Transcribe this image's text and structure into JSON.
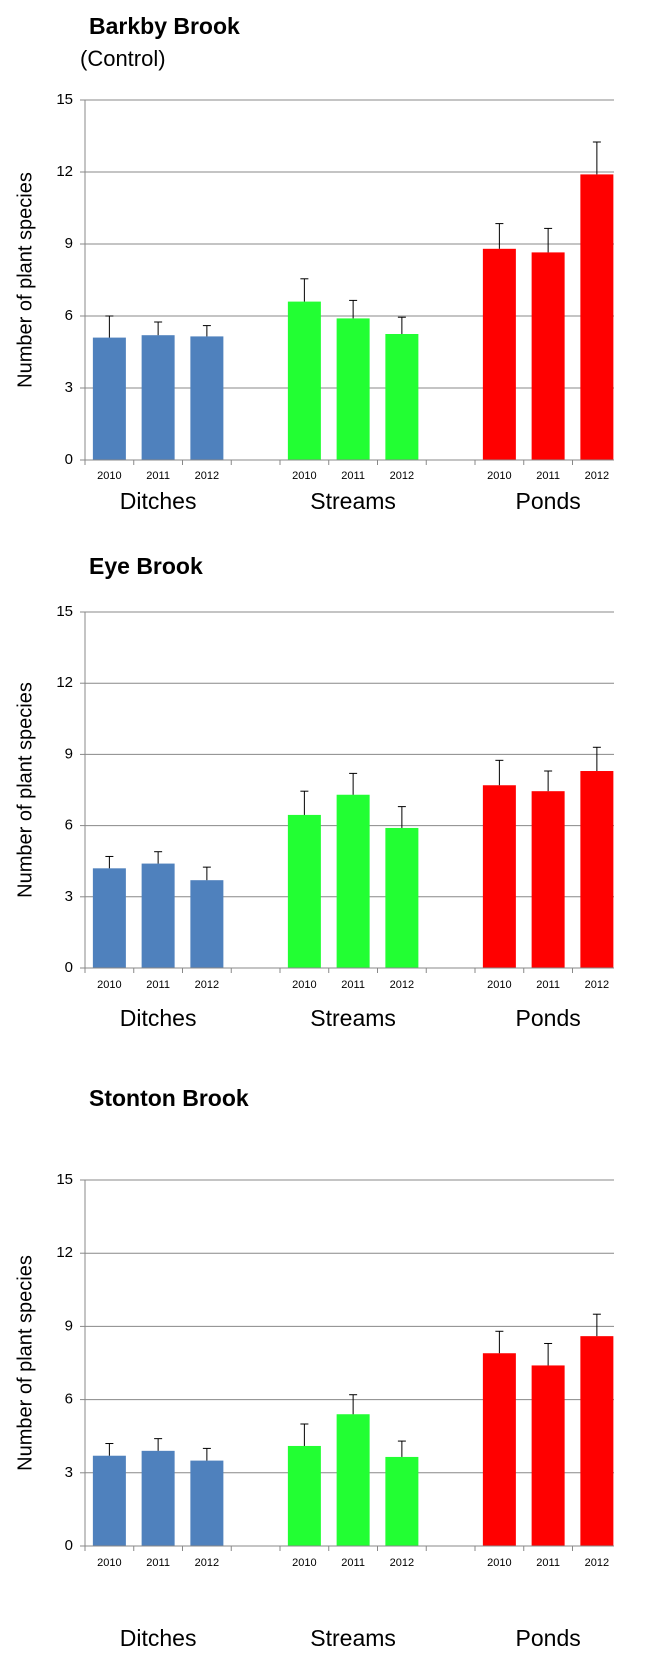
{
  "chart_data": [
    {
      "type": "bar",
      "title": "Barkby Brook",
      "subtitle": "(Control)",
      "ylabel": "Number of plant species",
      "categories": [
        "2010",
        "2011",
        "2012"
      ],
      "series": [
        {
          "name": "Ditches",
          "color": "#4f81bd",
          "values": [
            5.1,
            5.2,
            5.15
          ],
          "errors": [
            0.9,
            0.55,
            0.45
          ]
        },
        {
          "name": "Streams",
          "color": "#22ff33",
          "values": [
            6.6,
            5.9,
            5.25
          ],
          "errors": [
            0.95,
            0.75,
            0.7
          ]
        },
        {
          "name": "Ponds",
          "color": "#ff0000",
          "values": [
            8.8,
            8.65,
            11.9
          ],
          "errors": [
            1.05,
            1.0,
            1.35
          ]
        }
      ],
      "ylim": [
        0,
        15
      ],
      "yticks": [
        0,
        3,
        6,
        9,
        12,
        15
      ],
      "grid": true
    },
    {
      "type": "bar",
      "title": "Eye Brook",
      "ylabel": "Number of plant species",
      "categories": [
        "2010",
        "2011",
        "2012"
      ],
      "series": [
        {
          "name": "Ditches",
          "color": "#4f81bd",
          "values": [
            4.2,
            4.4,
            3.7
          ],
          "errors": [
            0.5,
            0.5,
            0.55
          ]
        },
        {
          "name": "Streams",
          "color": "#22ff33",
          "values": [
            6.45,
            7.3,
            5.9
          ],
          "errors": [
            1.0,
            0.9,
            0.9
          ]
        },
        {
          "name": "Ponds",
          "color": "#ff0000",
          "values": [
            7.7,
            7.45,
            8.3
          ],
          "errors": [
            1.05,
            0.85,
            1.0
          ]
        }
      ],
      "ylim": [
        0,
        15
      ],
      "yticks": [
        0,
        3,
        6,
        9,
        12,
        15
      ],
      "grid": true
    },
    {
      "type": "bar",
      "title": "Stonton Brook",
      "ylabel": "Number of plant species",
      "categories": [
        "2010",
        "2011",
        "2012"
      ],
      "series": [
        {
          "name": "Ditches",
          "color": "#4f81bd",
          "values": [
            3.7,
            3.9,
            3.5
          ],
          "errors": [
            0.5,
            0.5,
            0.5
          ]
        },
        {
          "name": "Streams",
          "color": "#22ff33",
          "values": [
            4.1,
            5.4,
            3.65
          ],
          "errors": [
            0.9,
            0.8,
            0.65
          ]
        },
        {
          "name": "Ponds",
          "color": "#ff0000",
          "values": [
            7.9,
            7.4,
            8.6
          ],
          "errors": [
            0.9,
            0.9,
            0.9
          ]
        }
      ],
      "ylim": [
        0,
        15
      ],
      "yticks": [
        0,
        3,
        6,
        9,
        12,
        15
      ],
      "grid": true
    }
  ]
}
